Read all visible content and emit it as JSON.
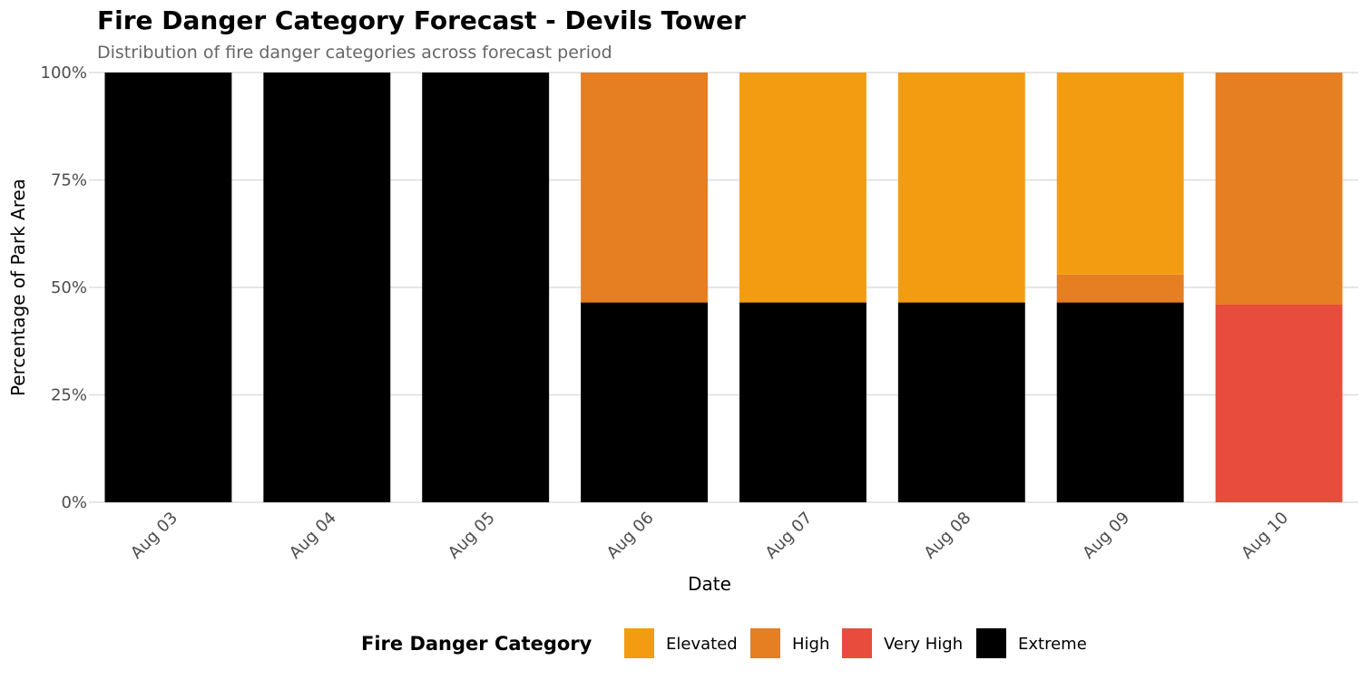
{
  "chart_data": {
    "type": "bar",
    "stacked": true,
    "normalized": true,
    "title": "Fire Danger Category Forecast - Devils Tower",
    "subtitle": "Distribution of fire danger categories across forecast period",
    "xlabel": "Date",
    "ylabel": "Percentage of Park Area",
    "ylim": [
      0,
      100
    ],
    "yticks": [
      "0%",
      "25%",
      "50%",
      "75%",
      "100%"
    ],
    "ytick_values": [
      0,
      25,
      50,
      75,
      100
    ],
    "categories": [
      "Aug 03",
      "Aug 04",
      "Aug 05",
      "Aug 06",
      "Aug 07",
      "Aug 08",
      "Aug 09",
      "Aug 10"
    ],
    "series": [
      {
        "name": "Extreme",
        "color": "#000000",
        "values": [
          100,
          100,
          100,
          46.5,
          46.5,
          46.5,
          46.5,
          0
        ]
      },
      {
        "name": "Very High",
        "color": "#E74C3C",
        "values": [
          0,
          0,
          0,
          0,
          0,
          0,
          0,
          46
        ]
      },
      {
        "name": "High",
        "color": "#E67E22",
        "values": [
          0,
          0,
          0,
          53.5,
          0,
          0,
          6.5,
          54
        ]
      },
      {
        "name": "Elevated",
        "color": "#F39C12",
        "values": [
          0,
          0,
          0,
          0,
          53.5,
          53.5,
          47,
          0
        ]
      }
    ],
    "grid": true,
    "legend": {
      "title": "Fire Danger Category",
      "position": "bottom",
      "entries": [
        {
          "name": "Elevated",
          "color": "#F39C12"
        },
        {
          "name": "High",
          "color": "#E67E22"
        },
        {
          "name": "Very High",
          "color": "#E74C3C"
        },
        {
          "name": "Extreme",
          "color": "#000000"
        }
      ]
    }
  }
}
